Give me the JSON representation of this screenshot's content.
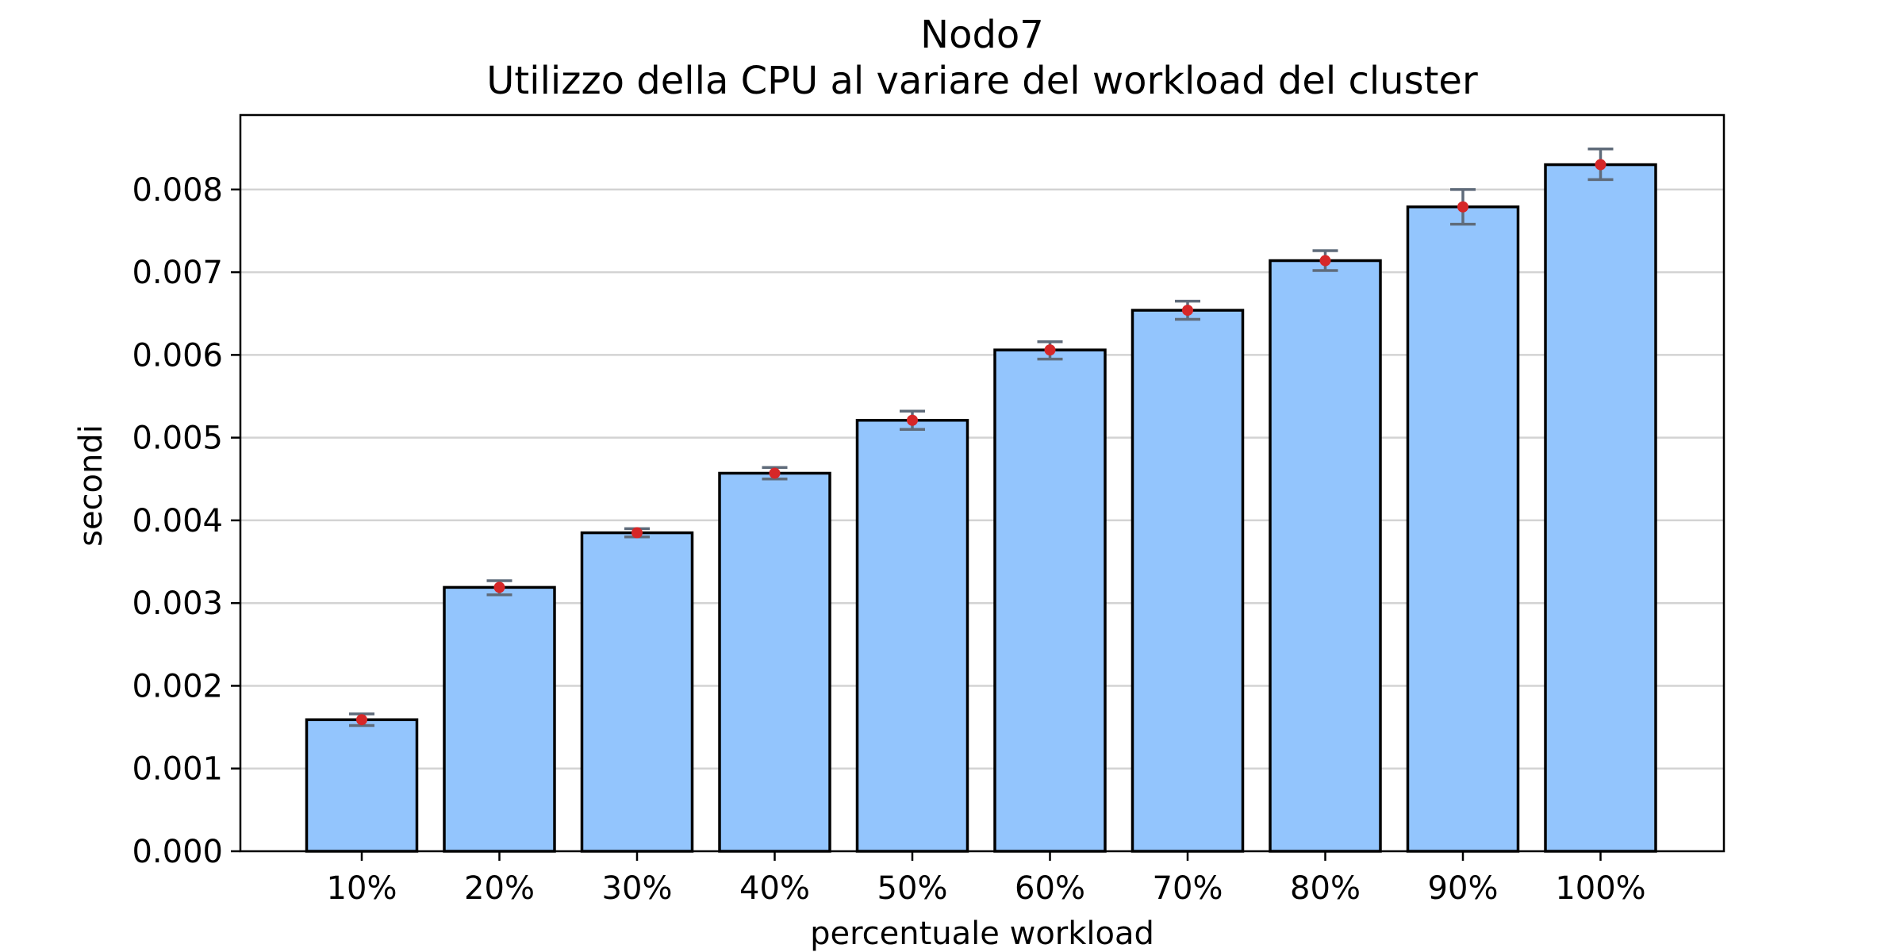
{
  "chart_data": {
    "type": "bar",
    "title": "Nodo7",
    "subtitle": "Utilizzo della CPU al variare del workload del cluster",
    "xlabel": "percentuale workload",
    "ylabel": "secondi",
    "categories": [
      "10%",
      "20%",
      "30%",
      "40%",
      "50%",
      "60%",
      "70%",
      "80%",
      "90%",
      "100%"
    ],
    "values": [
      0.00159,
      0.00319,
      0.00385,
      0.00457,
      0.00521,
      0.00606,
      0.00654,
      0.00714,
      0.00779,
      0.0083
    ],
    "error_low": [
      0.00152,
      0.0031,
      0.0038,
      0.0045,
      0.0051,
      0.00595,
      0.00643,
      0.00702,
      0.00758,
      0.00812
    ],
    "error_high": [
      0.00166,
      0.00327,
      0.0039,
      0.00464,
      0.00532,
      0.00616,
      0.00665,
      0.00726,
      0.008,
      0.00849
    ],
    "ylim": [
      0,
      0.0089
    ],
    "yticks": [
      "0.000",
      "0.001",
      "0.002",
      "0.003",
      "0.004",
      "0.005",
      "0.006",
      "0.007",
      "0.008"
    ],
    "ytick_values": [
      0,
      0.001,
      0.002,
      0.003,
      0.004,
      0.005,
      0.006,
      0.007,
      0.008
    ],
    "grid": "y",
    "colors": {
      "bar_fill": "#93c5fd",
      "bar_edge": "#000000",
      "error_bar": "#5f6b7a",
      "point": "#d62728",
      "grid": "#d3d3d3"
    }
  }
}
